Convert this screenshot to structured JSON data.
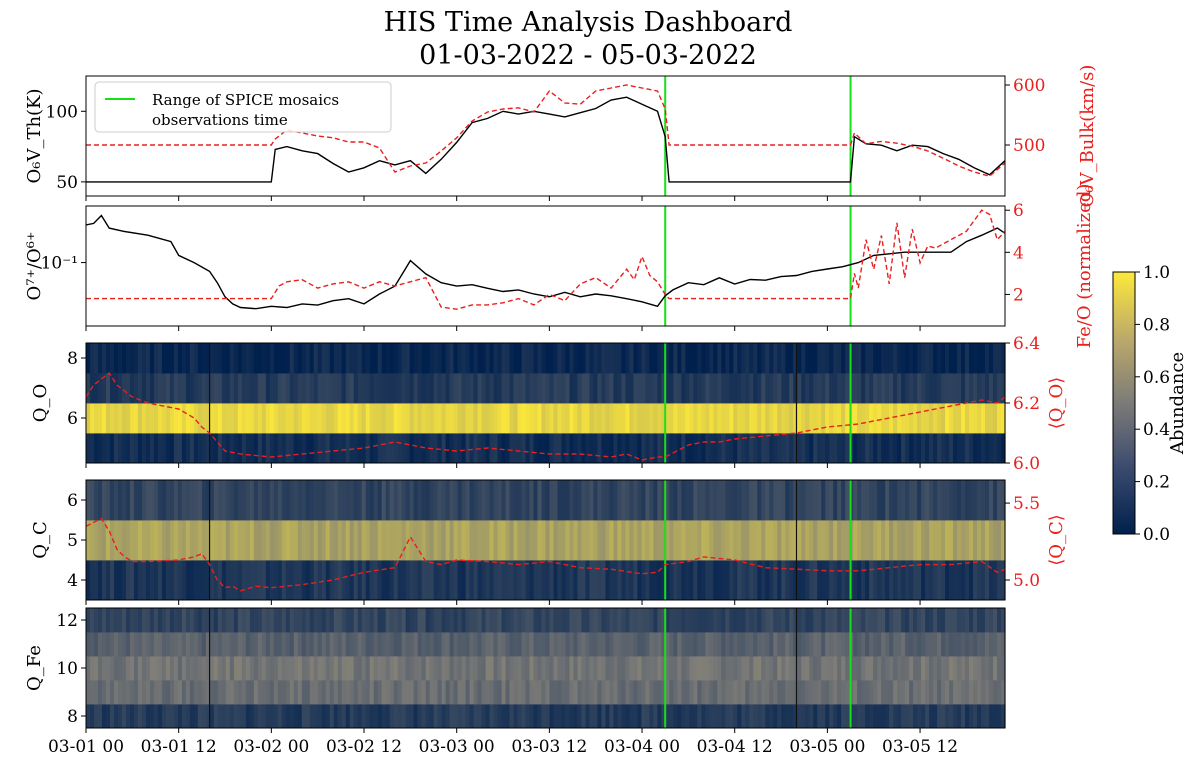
{
  "title_line1": "HIS Time Analysis Dashboard",
  "title_line2": "01-03-2022 - 05-03-2022",
  "legend_label": [
    "Range of SPICE mosaics",
    "observations time"
  ],
  "colors": {
    "primary_line": "#000000",
    "secondary_line": "#e8201e",
    "marker_line": "#18e018",
    "colormap_low": "#00204d",
    "colormap_mid": "#7c7b78",
    "colormap_high": "#fde93a"
  },
  "x_ticks": [
    "03-01 00",
    "03-01 12",
    "03-02 00",
    "03-02 12",
    "03-03 00",
    "03-03 12",
    "03-04 00",
    "03-04 12",
    "03-05 00",
    "03-05 12"
  ],
  "chart_data": [
    {
      "type": "line",
      "id": "vth",
      "ylabel": "O₆V_Th(K)",
      "ylabel_right": "O₆V_Bulk(km/s)",
      "y_ticks": [
        "50",
        "100"
      ],
      "y_ticks_right": [
        "500",
        "600"
      ],
      "ylim": [
        40,
        125
      ],
      "ylim_right": [
        415,
        615
      ],
      "x_hours_range": [
        0,
        119
      ],
      "spice_marker_hours": [
        75,
        99
      ],
      "series": [
        {
          "axis": "left",
          "style": "solid",
          "x_hours": [
            0,
            24,
            24.5,
            26,
            28,
            30,
            32,
            34,
            36,
            38,
            40,
            42,
            44,
            46,
            48,
            50,
            52,
            54,
            56,
            58,
            60,
            62,
            64,
            66,
            68,
            70,
            72,
            74,
            75,
            75.5,
            99,
            99.5,
            101,
            103,
            105,
            107,
            109,
            111,
            113,
            115,
            117,
            119
          ],
          "values": [
            50,
            50,
            73,
            75,
            72,
            70,
            63,
            57,
            60,
            65,
            62,
            65,
            56,
            66,
            78,
            92,
            95,
            100,
            98,
            100,
            98,
            96,
            99,
            102,
            108,
            110,
            105,
            100,
            82,
            50,
            50,
            82,
            77,
            76,
            72,
            76,
            75,
            70,
            66,
            60,
            55,
            65
          ]
        },
        {
          "axis": "right",
          "style": "dashed",
          "x_hours": [
            0,
            24,
            24.5,
            26,
            28,
            30,
            32,
            34,
            36,
            38,
            40,
            42,
            44,
            46,
            48,
            50,
            52,
            54,
            56,
            58,
            60,
            62,
            64,
            66,
            68,
            70,
            72,
            74,
            75,
            75.5,
            99,
            99.5,
            101,
            103,
            105,
            107,
            109,
            111,
            113,
            115,
            117,
            119
          ],
          "values": [
            500,
            500,
            510,
            525,
            520,
            515,
            512,
            505,
            505,
            495,
            455,
            465,
            470,
            490,
            512,
            540,
            555,
            560,
            562,
            555,
            590,
            570,
            568,
            590,
            595,
            600,
            595,
            590,
            560,
            500,
            500,
            520,
            502,
            506,
            503,
            498,
            490,
            478,
            465,
            455,
            448,
            470
          ]
        }
      ]
    },
    {
      "type": "line",
      "id": "charge_ratio",
      "ylabel": "O⁷⁺/O⁶⁺",
      "ylabel_right": "Fe/O (normalized)",
      "y_ticks": [
        "10⁻¹"
      ],
      "y_ticks_right": [
        "2",
        "4",
        "6"
      ],
      "ylim_right": [
        0.5,
        6.2
      ],
      "x_hours_range": [
        0,
        119
      ],
      "series": [
        {
          "axis": "left",
          "style": "solid",
          "x_hours": [
            0,
            1,
            2,
            3,
            5,
            8,
            11,
            12,
            14,
            16,
            17,
            18,
            19,
            20,
            22,
            24,
            26,
            28,
            30,
            32,
            34,
            36,
            38,
            40,
            42,
            44,
            46,
            48,
            50,
            52,
            54,
            56,
            58,
            60,
            62,
            64,
            66,
            68,
            70,
            72,
            74,
            75,
            76,
            78,
            80,
            82,
            84,
            86,
            88,
            90,
            92,
            94,
            96,
            98,
            100,
            102,
            104,
            106,
            108,
            110,
            112,
            114,
            116,
            118,
            119
          ],
          "values": [
            0.26,
            0.27,
            0.33,
            0.24,
            0.22,
            0.2,
            0.17,
            0.12,
            0.1,
            0.08,
            0.06,
            0.042,
            0.035,
            0.032,
            0.031,
            0.033,
            0.032,
            0.035,
            0.034,
            0.038,
            0.04,
            0.035,
            0.045,
            0.055,
            0.105,
            0.075,
            0.06,
            0.055,
            0.057,
            0.052,
            0.048,
            0.05,
            0.045,
            0.042,
            0.047,
            0.042,
            0.045,
            0.043,
            0.04,
            0.037,
            0.033,
            0.043,
            0.05,
            0.06,
            0.057,
            0.068,
            0.058,
            0.065,
            0.064,
            0.07,
            0.072,
            0.08,
            0.085,
            0.09,
            0.1,
            0.12,
            0.125,
            0.13,
            0.13,
            0.13,
            0.13,
            0.17,
            0.2,
            0.24,
            0.21
          ]
        },
        {
          "axis": "right",
          "style": "dashed",
          "x_hours": [
            0,
            24,
            25,
            26,
            28,
            30,
            32,
            34,
            36,
            38,
            40,
            42,
            44,
            46,
            48,
            50,
            52,
            54,
            56,
            58,
            60,
            62,
            64,
            66,
            68,
            70,
            71,
            72,
            73,
            74,
            75,
            75.5,
            99,
            99.5,
            100,
            101,
            102,
            103,
            104,
            105,
            106,
            107,
            108,
            109,
            110,
            112,
            114,
            115,
            116,
            117,
            118,
            119
          ],
          "values": [
            1.8,
            1.8,
            2.4,
            2.6,
            2.7,
            2.3,
            2.5,
            2.6,
            2.3,
            2.6,
            2.4,
            2.6,
            2.8,
            1.4,
            1.3,
            1.5,
            1.5,
            1.6,
            1.8,
            1.5,
            2.0,
            1.7,
            2.5,
            2.8,
            2.3,
            3.2,
            2.7,
            3.8,
            2.9,
            2.6,
            2.0,
            1.8,
            1.8,
            3.0,
            2.3,
            4.6,
            3.2,
            4.8,
            2.5,
            5.4,
            2.8,
            5.1,
            3.5,
            4.3,
            4.2,
            4.6,
            5.0,
            5.5,
            6.0,
            5.8,
            4.6,
            5.0
          ]
        }
      ]
    },
    {
      "type": "heatmap",
      "id": "qo",
      "ylabel": "Q_O",
      "ylabel_right": "⟨Q_O⟩",
      "y_ticks": [
        "6",
        "8"
      ],
      "y_ticks_right": [
        "6.0",
        "6.2",
        "6.4"
      ],
      "ylim": [
        4.5,
        8.5
      ],
      "ylim_right": [
        6.0,
        6.4
      ],
      "charge_states": [
        5,
        6,
        7,
        8
      ],
      "row_abundance": [
        0.08,
        0.92,
        0.15,
        0.04
      ],
      "series": [
        {
          "axis": "right",
          "style": "dashed",
          "x_hours": [
            0,
            1,
            2,
            3,
            4,
            5,
            6,
            8,
            10,
            12,
            14,
            15,
            16,
            18,
            20,
            24,
            28,
            32,
            36,
            40,
            44,
            48,
            52,
            56,
            60,
            64,
            68,
            70,
            72,
            74,
            75,
            78,
            80,
            82,
            84,
            88,
            92,
            96,
            100,
            104,
            108,
            110,
            112,
            114,
            116,
            118,
            119
          ],
          "values": [
            6.22,
            6.26,
            6.28,
            6.3,
            6.26,
            6.24,
            6.22,
            6.2,
            6.19,
            6.18,
            6.15,
            6.12,
            6.1,
            6.04,
            6.03,
            6.02,
            6.03,
            6.04,
            6.05,
            6.07,
            6.05,
            6.04,
            6.05,
            6.04,
            6.03,
            6.03,
            6.02,
            6.03,
            6.01,
            6.02,
            6.02,
            6.06,
            6.07,
            6.07,
            6.08,
            6.09,
            6.1,
            6.12,
            6.13,
            6.15,
            6.17,
            6.18,
            6.19,
            6.2,
            6.21,
            6.2,
            6.22
          ]
        }
      ]
    },
    {
      "type": "heatmap",
      "id": "qc",
      "ylabel": "Q_C",
      "ylabel_right": "⟨Q_C⟩",
      "y_ticks": [
        "4",
        "5",
        "6"
      ],
      "y_ticks_right": [
        "5.0",
        "5.5"
      ],
      "ylim": [
        3.5,
        6.5
      ],
      "ylim_right": [
        4.87,
        5.65
      ],
      "charge_states": [
        4,
        5,
        6
      ],
      "row_abundance": [
        0.12,
        0.68,
        0.2
      ],
      "series": [
        {
          "axis": "right",
          "style": "dashed",
          "x_hours": [
            0,
            2,
            3,
            4,
            5,
            6,
            8,
            12,
            14,
            15,
            16,
            17,
            18,
            19,
            20,
            22,
            24,
            28,
            32,
            36,
            40,
            42,
            44,
            46,
            48,
            52,
            56,
            60,
            64,
            68,
            72,
            74,
            75,
            78,
            80,
            82,
            84,
            88,
            92,
            96,
            100,
            104,
            108,
            112,
            116,
            118,
            119
          ],
          "values": [
            5.35,
            5.4,
            5.32,
            5.2,
            5.15,
            5.12,
            5.12,
            5.13,
            5.15,
            5.17,
            5.1,
            5.0,
            4.95,
            4.96,
            4.93,
            4.96,
            4.95,
            4.97,
            5.0,
            5.05,
            5.08,
            5.28,
            5.12,
            5.1,
            5.13,
            5.12,
            5.1,
            5.12,
            5.08,
            5.07,
            5.04,
            5.05,
            5.1,
            5.12,
            5.15,
            5.14,
            5.13,
            5.08,
            5.07,
            5.06,
            5.06,
            5.08,
            5.1,
            5.1,
            5.12,
            5.05,
            5.07
          ]
        }
      ]
    },
    {
      "type": "heatmap",
      "id": "qfe",
      "ylabel": "Q_Fe",
      "y_ticks": [
        "8",
        "10",
        "12"
      ],
      "ylim": [
        7.5,
        12.5
      ],
      "charge_states": [
        8,
        9,
        10,
        11,
        12
      ],
      "row_abundance": [
        0.15,
        0.42,
        0.46,
        0.36,
        0.2
      ]
    }
  ],
  "colorbar": {
    "label": "Abundance",
    "ticks": [
      "0.0",
      "0.2",
      "0.4",
      "0.6",
      "0.8",
      "1.0"
    ],
    "range": [
      0.0,
      1.0
    ]
  }
}
